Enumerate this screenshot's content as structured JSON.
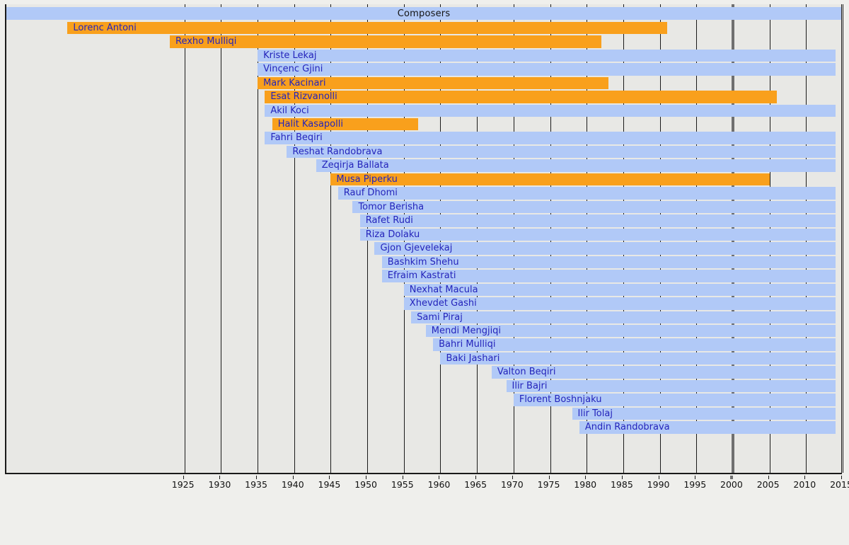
{
  "chart_data": {
    "type": "bar",
    "variant": "timeline-gantt",
    "title": "Composers",
    "xlabel": "",
    "ylabel": "",
    "x_axis": {
      "range_start": 1901,
      "range_end": 2015,
      "tick_step": 5,
      "ticks": [
        1925,
        1930,
        1935,
        1940,
        1945,
        1950,
        1955,
        1960,
        1965,
        1970,
        1975,
        1980,
        1985,
        1990,
        1995,
        2000,
        2005,
        2010,
        2015
      ],
      "emphasized_tick": 2000,
      "grid": "on",
      "legend": "none"
    },
    "living_bar_end_year": 2014,
    "series": [
      {
        "name": "Lorenc Antoni",
        "birth": 1909,
        "death": 1991,
        "status": "deceased"
      },
      {
        "name": "Rexho Mulliqi",
        "birth": 1923,
        "death": 1982,
        "status": "deceased"
      },
      {
        "name": "Kriste Lekaj",
        "birth": 1935,
        "death": null,
        "status": "living"
      },
      {
        "name": "Vinçenc Gjini",
        "birth": 1935,
        "death": null,
        "status": "living"
      },
      {
        "name": "Mark Kacinari",
        "birth": 1935,
        "death": 1983,
        "status": "deceased"
      },
      {
        "name": "Esat Rizvanolli",
        "birth": 1936,
        "death": 2006,
        "status": "deceased"
      },
      {
        "name": "Akil Koci",
        "birth": 1936,
        "death": null,
        "status": "living"
      },
      {
        "name": "Halit Kasapolli",
        "birth": 1937,
        "death": 1957,
        "status": "deceased"
      },
      {
        "name": "Fahri Beqiri",
        "birth": 1936,
        "death": null,
        "status": "living"
      },
      {
        "name": "Reshat Randobrava",
        "birth": 1939,
        "death": null,
        "status": "living"
      },
      {
        "name": "Zeqirja Ballata",
        "birth": 1943,
        "death": null,
        "status": "living"
      },
      {
        "name": "Musa Piperku",
        "birth": 1945,
        "death": 2005,
        "status": "deceased"
      },
      {
        "name": "Rauf Dhomi",
        "birth": 1946,
        "death": null,
        "status": "living"
      },
      {
        "name": "Tomor Berisha",
        "birth": 1948,
        "death": null,
        "status": "living"
      },
      {
        "name": "Rafet Rudi",
        "birth": 1949,
        "death": null,
        "status": "living"
      },
      {
        "name": "Riza Dolaku",
        "birth": 1949,
        "death": null,
        "status": "living"
      },
      {
        "name": "Gjon Gjevelekaj",
        "birth": 1951,
        "death": null,
        "status": "living"
      },
      {
        "name": "Bashkim Shehu",
        "birth": 1952,
        "death": null,
        "status": "living"
      },
      {
        "name": "Efraim Kastrati",
        "birth": 1952,
        "death": null,
        "status": "living"
      },
      {
        "name": "Nexhat Macula",
        "birth": 1955,
        "death": null,
        "status": "living"
      },
      {
        "name": "Xhevdet Gashi",
        "birth": 1955,
        "death": null,
        "status": "living"
      },
      {
        "name": "Sami Piraj",
        "birth": 1956,
        "death": null,
        "status": "living"
      },
      {
        "name": "Mendi Mengjiqi",
        "birth": 1958,
        "death": null,
        "status": "living"
      },
      {
        "name": "Bahri Mulliqi",
        "birth": 1959,
        "death": null,
        "status": "living"
      },
      {
        "name": "Baki Jashari",
        "birth": 1960,
        "death": null,
        "status": "living"
      },
      {
        "name": "Valton Beqiri",
        "birth": 1967,
        "death": null,
        "status": "living"
      },
      {
        "name": "Ilir Bajri",
        "birth": 1969,
        "death": null,
        "status": "living"
      },
      {
        "name": "Florent Boshnjaku",
        "birth": 1970,
        "death": null,
        "status": "living"
      },
      {
        "name": "Ilir Tolaj",
        "birth": 1978,
        "death": null,
        "status": "living"
      },
      {
        "name": "Andin Randobrava",
        "birth": 1979,
        "death": null,
        "status": "living"
      }
    ]
  },
  "colors": {
    "living_bar": "#b1c9f7",
    "deceased_bar": "#f9a01c",
    "title_bar_bg": "#b1c9f7",
    "bar_label_text": "#2424bb",
    "plot_bg": "#e8e8e5",
    "page_bg": "#efefec",
    "gridline": "#1a1a1a",
    "gridline_2000": "#6f6f6f",
    "axis_text": "#111111"
  }
}
